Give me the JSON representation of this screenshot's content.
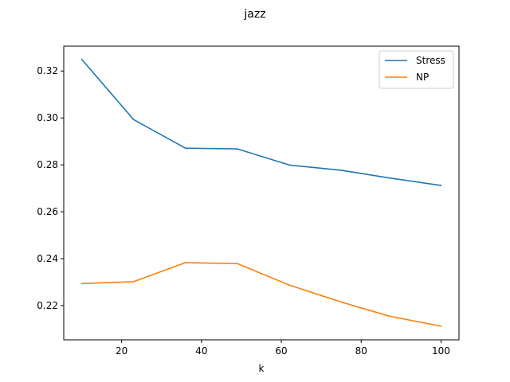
{
  "chart_data": {
    "type": "line",
    "title": "jazz",
    "xlabel": "k",
    "ylabel": "",
    "xlim": [
      5.5,
      104.5
    ],
    "ylim": [
      0.2054,
      0.3306
    ],
    "xticks": [
      20,
      40,
      60,
      80,
      100
    ],
    "xtick_labels": [
      "20",
      "40",
      "60",
      "80",
      "100"
    ],
    "yticks": [
      0.22,
      0.24,
      0.26,
      0.28,
      0.3,
      0.32
    ],
    "ytick_labels": [
      "0.22",
      "0.24",
      "0.26",
      "0.28",
      "0.30",
      "0.32"
    ],
    "grid": false,
    "legend_position": "top-right",
    "x": [
      10,
      23,
      36,
      49,
      62,
      75,
      87,
      100
    ],
    "series": [
      {
        "name": "Stress",
        "color": "#1f77b4",
        "values": [
          0.325,
          0.2993,
          0.2871,
          0.2868,
          0.2799,
          0.2777,
          0.2744,
          0.2712
        ]
      },
      {
        "name": "NP",
        "color": "#ff7f0e",
        "values": [
          0.2294,
          0.2302,
          0.2383,
          0.2379,
          0.2287,
          0.2215,
          0.2155,
          0.2112
        ]
      }
    ]
  }
}
